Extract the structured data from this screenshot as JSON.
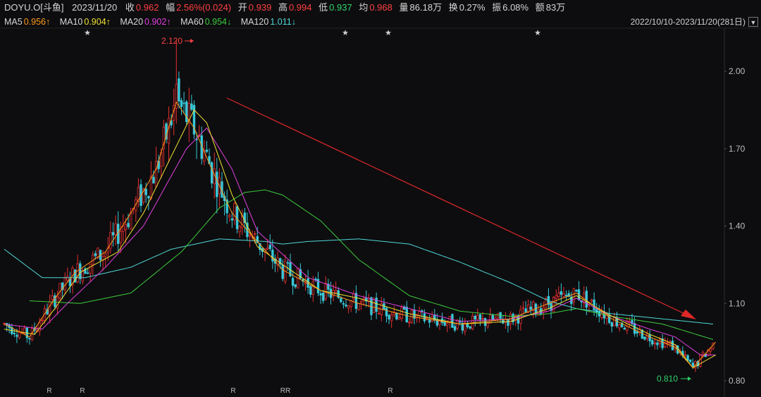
{
  "header": {
    "symbol": "DOYU.O[斗鱼]",
    "date": "2023/11/20",
    "close_label": "收",
    "close": "0.962",
    "change_label": "幅",
    "change": "2.56%(0.024)",
    "open_label": "开",
    "open": "0.939",
    "high_label": "高",
    "high": "0.994",
    "low_label": "低",
    "low": "0.937",
    "avg_label": "均",
    "avg": "0.968",
    "volume_label": "量",
    "volume": "86.18万",
    "turnover_label": "换",
    "turnover": "0.27%",
    "amplitude_label": "振",
    "amplitude": "6.08%",
    "amount_label": "额",
    "amount": "83万"
  },
  "ma_bar": [
    {
      "name": "MA5",
      "value": "0.956↑",
      "color": "#ff9a1a"
    },
    {
      "name": "MA10",
      "value": "0.904↑",
      "color": "#f0e030"
    },
    {
      "name": "MA20",
      "value": "0.902↑",
      "color": "#e040e0"
    },
    {
      "name": "MA60",
      "value": "0.954↓",
      "color": "#3ccc3c"
    },
    {
      "name": "MA120",
      "value": "1.011↓",
      "color": "#4fd6d6"
    }
  ],
  "date_range": "2022/10/10-2023/11/20(281日)",
  "chart_data": {
    "type": "line",
    "title": "",
    "xlabel": "",
    "ylabel": "",
    "y_ticks": [
      "2.00",
      "1.70",
      "1.40",
      "1.10",
      "0.80"
    ],
    "ylim": [
      0.79,
      2.2
    ],
    "max_label": "2.120",
    "min_label": "0.810",
    "x_markers": [
      "R",
      "R",
      "R",
      "RR",
      "R"
    ],
    "event_markers": [
      "★",
      "★",
      "★",
      "★"
    ],
    "series": [
      {
        "name": "",
        "color": "#4fd6d6",
        "x": [
          0,
          15,
          32,
          50,
          66,
          85,
          103,
          110,
          120,
          140,
          160,
          180,
          200,
          215,
          226,
          240,
          260,
          280
        ],
        "values": [
          1.31,
          1.2,
          1.2,
          1.24,
          1.31,
          1.35,
          1.34,
          1.33,
          1.34,
          1.35,
          1.33,
          1.26,
          1.18,
          1.11,
          1.08,
          1.06,
          1.04,
          1.02
        ]
      },
      {
        "name": "",
        "color": "#3ccc3c",
        "x": [
          10,
          30,
          50,
          70,
          85,
          95,
          103,
          110,
          125,
          140,
          160,
          180,
          200,
          215,
          226,
          240,
          260,
          280
        ],
        "values": [
          1.11,
          1.1,
          1.14,
          1.3,
          1.47,
          1.53,
          1.54,
          1.52,
          1.42,
          1.27,
          1.13,
          1.07,
          1.05,
          1.06,
          1.08,
          1.05,
          1.02,
          0.96
        ]
      },
      {
        "name": "",
        "color": "#e040e0",
        "x": [
          0,
          15,
          25,
          40,
          55,
          72,
          80,
          90,
          100,
          110,
          120,
          140,
          160,
          180,
          200,
          215,
          226,
          240,
          255,
          265,
          275,
          281
        ],
        "values": [
          1.02,
          1.0,
          1.1,
          1.24,
          1.4,
          1.7,
          1.78,
          1.62,
          1.38,
          1.29,
          1.2,
          1.13,
          1.08,
          1.03,
          1.04,
          1.07,
          1.12,
          1.05,
          1.0,
          0.97,
          0.9,
          0.9
        ]
      },
      {
        "name": "",
        "color": "#f0e030",
        "x": [
          0,
          12,
          20,
          30,
          45,
          55,
          66,
          75,
          80,
          90,
          100,
          110,
          125,
          140,
          160,
          180,
          200,
          215,
          226,
          240,
          255,
          265,
          272,
          281
        ],
        "values": [
          1.0,
          0.98,
          1.08,
          1.22,
          1.3,
          1.45,
          1.67,
          1.85,
          1.8,
          1.52,
          1.32,
          1.25,
          1.15,
          1.12,
          1.06,
          1.02,
          1.03,
          1.08,
          1.13,
          1.05,
          0.98,
          0.94,
          0.85,
          0.9
        ]
      },
      {
        "name": "",
        "color": "#ff9a1a",
        "x": [
          0,
          10,
          20,
          28,
          40,
          50,
          60,
          68,
          75,
          82,
          90,
          100,
          110,
          125,
          140,
          160,
          180,
          200,
          215,
          226,
          240,
          255,
          265,
          272,
          281
        ],
        "values": [
          1.02,
          0.97,
          1.12,
          1.22,
          1.3,
          1.45,
          1.62,
          1.88,
          1.78,
          1.62,
          1.45,
          1.34,
          1.23,
          1.15,
          1.1,
          1.05,
          1.02,
          1.04,
          1.1,
          1.14,
          1.04,
          0.97,
          0.93,
          0.85,
          0.95
        ]
      }
    ]
  }
}
